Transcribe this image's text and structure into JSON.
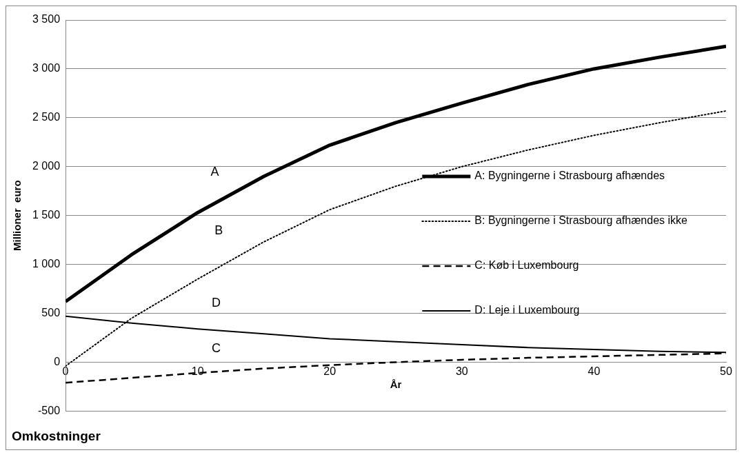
{
  "chart_data": {
    "type": "line",
    "xlabel": "År",
    "ylabel": "Millioner  euro",
    "x": [
      0,
      5,
      10,
      15,
      20,
      25,
      30,
      35,
      40,
      45,
      50
    ],
    "series": [
      {
        "name": "A: Bygningerne i Strasbourg afhændes",
        "color": "#000000",
        "line_style": "solid",
        "values": [
          620,
          1100,
          1530,
          1900,
          2220,
          2450,
          2650,
          2840,
          3000,
          3120,
          3230
        ]
      },
      {
        "name": "B: Bygningerne i Strasbourg afhændes ikke",
        "color": "#000000",
        "line_style": "dotted",
        "values": [
          -40,
          450,
          850,
          1230,
          1560,
          1800,
          2000,
          2170,
          2320,
          2450,
          2570
        ]
      },
      {
        "name": "C: Køb i Luxembourg",
        "color": "#000000",
        "line_style": "dashed",
        "values": [
          -210,
          -160,
          -110,
          -65,
          -30,
          0,
          25,
          45,
          60,
          75,
          90
        ]
      },
      {
        "name": "D: Leje i Luxembourg",
        "color": "#000000",
        "line_style": "solid",
        "values": [
          470,
          400,
          340,
          290,
          240,
          210,
          180,
          150,
          130,
          110,
          100
        ]
      }
    ],
    "xlim": [
      0,
      50
    ],
    "xticks": [
      0,
      10,
      20,
      30,
      40,
      50
    ],
    "ylim": [
      -500,
      3500
    ],
    "yticks": [
      {
        "value": -500,
        "label": "-500"
      },
      {
        "value": 0,
        "label": "0"
      },
      {
        "value": 500,
        "label": "500"
      },
      {
        "value": 1000,
        "label": "1 000"
      },
      {
        "value": 1500,
        "label": "1 500"
      },
      {
        "value": 2000,
        "label": "2 000"
      },
      {
        "value": 2500,
        "label": "2 500"
      },
      {
        "value": 3000,
        "label": "3 000"
      },
      {
        "value": 3500,
        "label": "3 500"
      }
    ],
    "grid": "y",
    "legend": "right",
    "marker": "none",
    "annotations": [
      "A",
      "B",
      "D",
      "C",
      "Omkostninger"
    ]
  }
}
